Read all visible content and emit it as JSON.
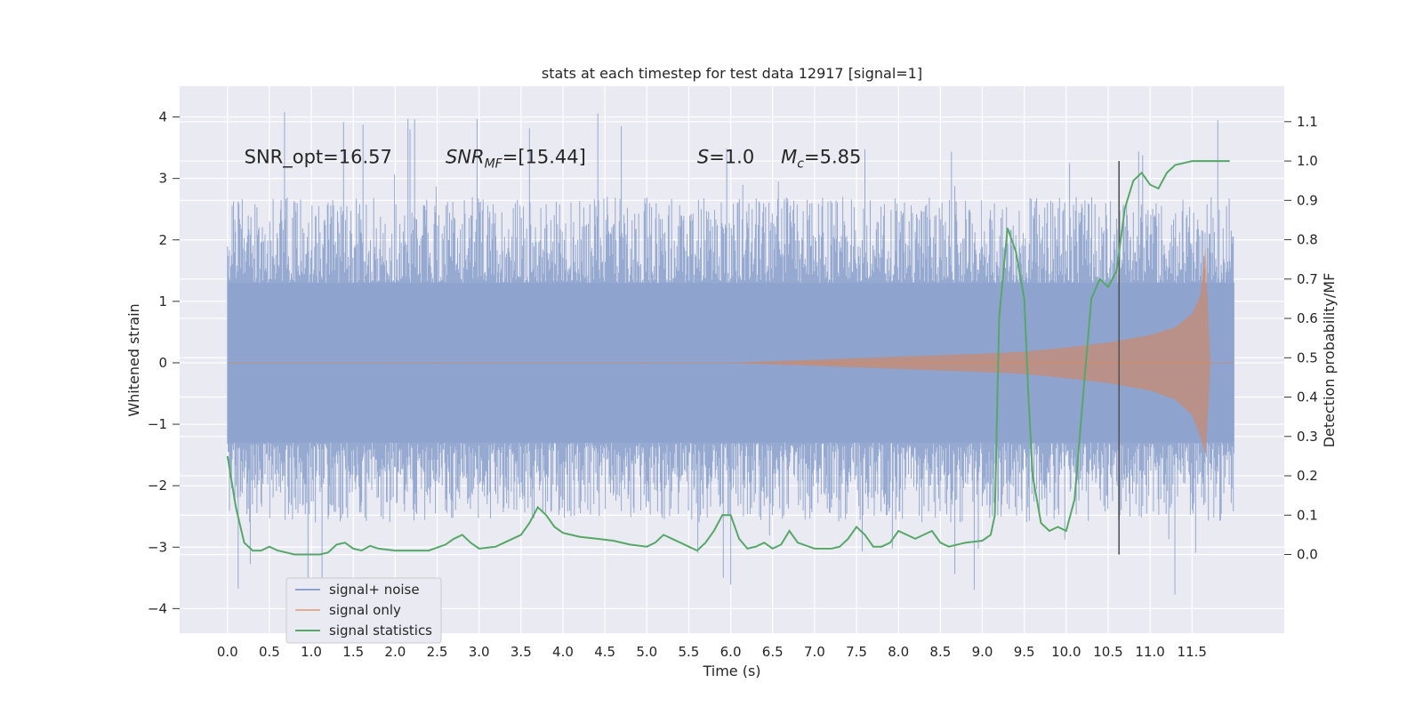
{
  "chart_data": {
    "type": "line",
    "title": "stats at each timestep for test data 12917 [signal=1]",
    "xlabel": "Time (s)",
    "ylabel": "Whitened strain",
    "y2label": "Detection probability/MF",
    "xlim": [
      -0.57,
      12.6
    ],
    "ylim": [
      -4.4,
      4.5
    ],
    "y2lim": [
      -0.2,
      1.19
    ],
    "x_ticks": [
      "0.0",
      "0.5",
      "1.0",
      "1.5",
      "2.0",
      "2.5",
      "3.0",
      "3.5",
      "4.0",
      "4.5",
      "5.0",
      "5.5",
      "6.0",
      "6.5",
      "7.0",
      "7.5",
      "8.0",
      "8.5",
      "9.0",
      "9.5",
      "10.0",
      "10.5",
      "11.0",
      "11.5"
    ],
    "y_ticks": [
      "4",
      "3",
      "2",
      "1",
      "0",
      "−1",
      "−2",
      "−3",
      "−4"
    ],
    "y2_ticks": [
      "1.1",
      "1.0",
      "0.9",
      "0.8",
      "0.7",
      "0.6",
      "0.5",
      "0.4",
      "0.3",
      "0.2",
      "0.1",
      "0.0"
    ],
    "grid": true,
    "legend_position": "lower-left",
    "colors": {
      "background": "#eaeaf2",
      "grid": "#ffffff",
      "noise": "#8da2cc",
      "signal": "#dd8452",
      "statistics": "#55a868",
      "marker": "#555555"
    },
    "annotations": [
      {
        "label": "SNR_opt=16.57",
        "x": 0.2,
        "y": 3.25
      },
      {
        "label": "SNR_MF=[15.44]",
        "x": 2.6,
        "y": 3.25
      },
      {
        "label": "S=1.0",
        "x": 5.6,
        "y": 3.25
      },
      {
        "label": "M_c=5.85",
        "x": 6.6,
        "y": 3.25
      }
    ],
    "series": [
      {
        "name": "signal+ noise",
        "kind": "noise_envelope",
        "x_range": [
          0.0,
          12.0
        ],
        "dense_band": [
          -1.3,
          1.3
        ],
        "typical_peaks": [
          -2.2,
          2.3
        ],
        "max_extreme": 4.1,
        "min_extreme": -3.9
      },
      {
        "name": "signal only",
        "kind": "chirp_envelope",
        "x": [
          6.0,
          7.0,
          8.0,
          9.0,
          9.5,
          10.0,
          10.5,
          11.0,
          11.3,
          11.5,
          11.6,
          11.66,
          11.7,
          11.72
        ],
        "upper": [
          0.0,
          0.05,
          0.1,
          0.15,
          0.18,
          0.25,
          0.33,
          0.45,
          0.58,
          0.8,
          1.1,
          1.9,
          0.6,
          0.0
        ],
        "lower": [
          0.0,
          -0.05,
          -0.1,
          -0.15,
          -0.18,
          -0.25,
          -0.33,
          -0.45,
          -0.6,
          -0.85,
          -1.2,
          -1.5,
          -0.6,
          0.0
        ]
      },
      {
        "name": "signal statistics",
        "kind": "probability_line",
        "x": [
          0.0,
          0.1,
          0.2,
          0.3,
          0.4,
          0.5,
          0.6,
          0.8,
          1.0,
          1.1,
          1.2,
          1.3,
          1.4,
          1.5,
          1.6,
          1.7,
          1.8,
          2.0,
          2.2,
          2.4,
          2.6,
          2.7,
          2.8,
          2.9,
          3.0,
          3.2,
          3.3,
          3.4,
          3.5,
          3.6,
          3.7,
          3.8,
          3.9,
          4.0,
          4.2,
          4.4,
          4.6,
          4.8,
          5.0,
          5.1,
          5.2,
          5.3,
          5.4,
          5.5,
          5.6,
          5.7,
          5.8,
          5.9,
          6.0,
          6.1,
          6.2,
          6.3,
          6.4,
          6.5,
          6.6,
          6.7,
          6.8,
          7.0,
          7.2,
          7.3,
          7.4,
          7.5,
          7.6,
          7.7,
          7.8,
          7.9,
          8.0,
          8.1,
          8.2,
          8.3,
          8.4,
          8.5,
          8.6,
          8.8,
          9.0,
          9.1,
          9.15,
          9.2,
          9.3,
          9.4,
          9.5,
          9.55,
          9.6,
          9.7,
          9.8,
          9.9,
          10.0,
          10.1,
          10.2,
          10.3,
          10.4,
          10.5,
          10.6,
          10.7,
          10.8,
          10.9,
          11.0,
          11.1,
          11.2,
          11.3,
          11.5,
          11.8,
          11.95
        ],
        "y": [
          0.25,
          0.12,
          0.03,
          0.01,
          0.01,
          0.02,
          0.01,
          0.0,
          0.0,
          0.0,
          0.005,
          0.025,
          0.03,
          0.015,
          0.01,
          0.022,
          0.015,
          0.01,
          0.01,
          0.01,
          0.025,
          0.04,
          0.05,
          0.03,
          0.015,
          0.02,
          0.03,
          0.04,
          0.05,
          0.08,
          0.12,
          0.1,
          0.07,
          0.055,
          0.045,
          0.04,
          0.035,
          0.025,
          0.02,
          0.03,
          0.05,
          0.04,
          0.03,
          0.02,
          0.01,
          0.03,
          0.06,
          0.1,
          0.1,
          0.04,
          0.015,
          0.02,
          0.03,
          0.015,
          0.025,
          0.06,
          0.03,
          0.015,
          0.015,
          0.02,
          0.04,
          0.07,
          0.05,
          0.02,
          0.02,
          0.03,
          0.06,
          0.05,
          0.04,
          0.05,
          0.06,
          0.03,
          0.02,
          0.03,
          0.035,
          0.05,
          0.1,
          0.6,
          0.83,
          0.77,
          0.65,
          0.4,
          0.2,
          0.08,
          0.06,
          0.07,
          0.06,
          0.14,
          0.4,
          0.65,
          0.7,
          0.68,
          0.72,
          0.88,
          0.95,
          0.97,
          0.94,
          0.93,
          0.97,
          0.99,
          1.0,
          1.0,
          1.0
        ]
      }
    ],
    "vertical_marker_x": 10.63,
    "vertical_marker_y2_range": [
      0.0,
      1.0
    ]
  }
}
